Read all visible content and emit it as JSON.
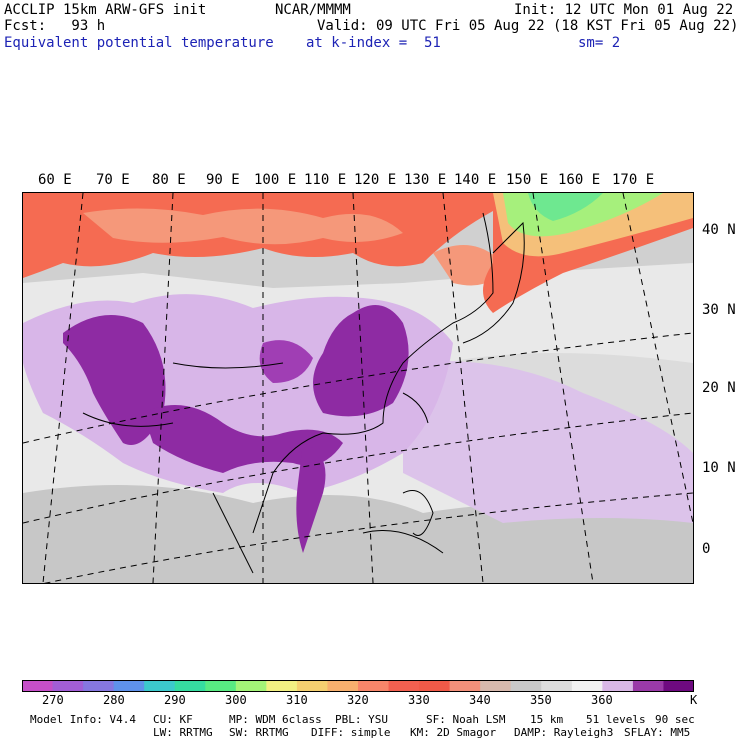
{
  "header": {
    "line1_left": "ACCLIP 15km ARW-GFS init",
    "line1_center": "NCAR/MMMM",
    "line1_right": "Init: 12 UTC Mon 01 Aug 22",
    "line2_left": "Fcst:   93 h",
    "line2_right": "Valid: 09 UTC Fri 05 Aug 22 (18 KST Fri 05 Aug 22)",
    "line3_left": "Equivalent potential temperature",
    "line3_center": "at k-index =  51",
    "line3_right": "sm= 2"
  },
  "map": {
    "lon_labels": [
      "60 E",
      "70 E",
      "80 E",
      "90 E",
      "100 E",
      "110 E",
      "120 E",
      "130 E",
      "140 E",
      "150 E",
      "160 E",
      "170 E"
    ],
    "lat_labels": [
      "40 N",
      "30 N",
      "20 N",
      "10 N",
      "0"
    ],
    "shading": {
      "cold_north": "#e8e8e8",
      "warm_band": "#f66a50",
      "warm_band_light": "#f7a07a",
      "cool_pacific": "#7ee88a",
      "moist_high": "#8c2a9e",
      "moist_mid": "#d6b4e6",
      "dry_gray": "#c8c8c8"
    }
  },
  "colorbar": {
    "colors": [
      "#c64fc8",
      "#a25ed6",
      "#8677e0",
      "#5f92ea",
      "#3cc9cc",
      "#36dca0",
      "#58ea82",
      "#a4f478",
      "#f2f082",
      "#f5d070",
      "#f7b06e",
      "#f7866a",
      "#f26050",
      "#f05a48",
      "#f3907a",
      "#d7b9ad",
      "#c9c9c9",
      "#dddddd",
      "#f1f1f1",
      "#d9b8e6",
      "#9a3aa8",
      "#6e0a80"
    ],
    "labels": [
      "270",
      "280",
      "290",
      "300",
      "310",
      "320",
      "330",
      "340",
      "350",
      "360",
      "K"
    ]
  },
  "footer": {
    "line1": [
      "Model Info: V4.4",
      "CU: KF",
      "MP: WDM 6class",
      "PBL: YSU",
      "SF: Noah LSM",
      "15 km",
      "51 levels",
      "90 sec"
    ],
    "line2": [
      "LW: RRTMG",
      "SW: RRTMG",
      "DIFF: simple",
      "KM: 2D Smagor",
      "DAMP: Rayleigh3",
      "SFLAY: MM5"
    ]
  }
}
